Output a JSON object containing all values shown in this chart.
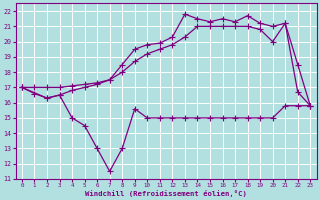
{
  "background_color": "#b2e0e0",
  "grid_color": "#c8dede",
  "line_color": "#800080",
  "xlabel": "Windchill (Refroidissement éolien,°C)",
  "xlim": [
    -0.5,
    23.5
  ],
  "ylim": [
    11,
    22.5
  ],
  "xticks": [
    0,
    1,
    2,
    3,
    4,
    5,
    6,
    7,
    8,
    9,
    10,
    11,
    12,
    13,
    14,
    15,
    16,
    17,
    18,
    19,
    20,
    21,
    22,
    23
  ],
  "yticks": [
    11,
    12,
    13,
    14,
    15,
    16,
    17,
    18,
    19,
    20,
    21,
    22
  ],
  "line1_x": [
    0,
    1,
    2,
    3,
    4,
    5,
    6,
    7,
    8,
    9,
    10,
    11,
    12,
    13,
    14,
    15,
    16,
    17,
    18,
    19,
    20,
    21,
    22,
    23
  ],
  "line1_y": [
    17.0,
    16.6,
    16.3,
    16.5,
    15.0,
    14.5,
    13.0,
    11.5,
    13.0,
    15.6,
    15.0,
    15.0,
    15.0,
    15.0,
    15.0,
    15.0,
    15.0,
    15.0,
    15.0,
    15.0,
    15.0,
    15.8,
    15.8,
    15.8
  ],
  "line2_x": [
    0,
    1,
    2,
    3,
    4,
    5,
    6,
    7,
    8,
    9,
    10,
    11,
    12,
    13,
    14,
    15,
    16,
    17,
    18,
    19,
    20,
    21,
    22,
    23
  ],
  "line2_y": [
    17.0,
    17.0,
    17.0,
    17.0,
    17.1,
    17.2,
    17.3,
    17.5,
    18.0,
    18.7,
    19.2,
    19.5,
    19.8,
    20.3,
    21.0,
    21.0,
    21.0,
    21.0,
    21.0,
    20.8,
    20.0,
    21.2,
    16.7,
    15.8
  ],
  "line3_x": [
    0,
    2,
    3,
    4,
    5,
    6,
    7,
    8,
    9,
    10,
    11,
    12,
    13,
    14,
    15,
    16,
    17,
    18,
    19,
    20,
    21,
    22,
    23
  ],
  "line3_y": [
    17.0,
    16.3,
    16.5,
    16.8,
    17.0,
    17.2,
    17.5,
    18.5,
    19.5,
    19.8,
    19.9,
    20.3,
    21.8,
    21.5,
    21.3,
    21.5,
    21.3,
    21.7,
    21.2,
    21.0,
    21.2,
    18.5,
    15.8
  ]
}
